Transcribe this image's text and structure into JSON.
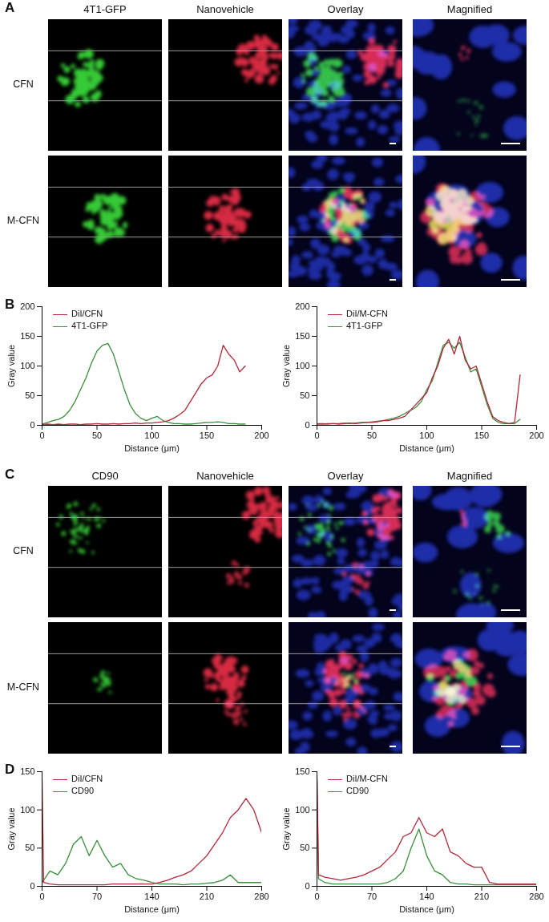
{
  "figure_panels": [
    {
      "letter": "A",
      "columns": [
        "4T1-GFP",
        "Nanovehicle",
        "Overlay",
        "Magnified"
      ],
      "rows": [
        "CFN",
        "M-CFN"
      ]
    },
    {
      "letter": "C",
      "columns": [
        "CD90",
        "Nanovehicle",
        "Overlay",
        "Magnified"
      ],
      "rows": [
        "CFN",
        "M-CFN"
      ]
    }
  ],
  "chart_panel_letters": [
    "B",
    "D"
  ],
  "chart_data": [
    {
      "type": "line",
      "x_label": "Distance (μm)",
      "y_label": "Gray value",
      "xlim": [
        0,
        200
      ],
      "xticks": [
        0,
        50,
        100,
        150,
        200
      ],
      "ylim": [
        0,
        200
      ],
      "yticks": [
        0,
        50,
        100,
        150,
        200
      ],
      "grid": false,
      "legend": "top-left",
      "x": [
        0,
        5,
        10,
        15,
        20,
        25,
        30,
        35,
        40,
        45,
        50,
        55,
        60,
        65,
        70,
        75,
        80,
        85,
        90,
        95,
        100,
        105,
        110,
        115,
        120,
        125,
        130,
        135,
        140,
        145,
        150,
        155,
        160,
        165,
        170,
        175,
        180,
        185
      ],
      "series": [
        {
          "name": "DiI/CFN",
          "color": "#b0283a",
          "values": [
            1,
            2,
            1,
            2,
            1,
            2,
            2,
            1,
            2,
            2,
            3,
            2,
            2,
            3,
            2,
            3,
            3,
            4,
            3,
            4,
            4,
            5,
            6,
            8,
            12,
            18,
            25,
            40,
            55,
            70,
            80,
            85,
            100,
            135,
            120,
            110,
            90,
            100
          ]
        },
        {
          "name": "4T1-GFP",
          "color": "#3a8f3a",
          "values": [
            2,
            5,
            8,
            10,
            15,
            25,
            40,
            60,
            80,
            105,
            125,
            135,
            138,
            120,
            90,
            60,
            35,
            20,
            12,
            8,
            12,
            15,
            8,
            5,
            3,
            3,
            2,
            2,
            3,
            4,
            5,
            5,
            6,
            5,
            3,
            3,
            2,
            2
          ]
        }
      ]
    },
    {
      "type": "line",
      "x_label": "Distance (μm)",
      "y_label": "Gray value",
      "xlim": [
        0,
        200
      ],
      "xticks": [
        0,
        50,
        100,
        150,
        200
      ],
      "ylim": [
        0,
        200
      ],
      "yticks": [
        0,
        50,
        100,
        150,
        200
      ],
      "grid": false,
      "legend": "top-left",
      "x": [
        0,
        5,
        10,
        15,
        20,
        25,
        30,
        35,
        40,
        45,
        50,
        55,
        60,
        65,
        70,
        75,
        80,
        85,
        90,
        95,
        100,
        105,
        110,
        115,
        120,
        125,
        130,
        135,
        140,
        145,
        150,
        155,
        160,
        165,
        170,
        175,
        180,
        185
      ],
      "series": [
        {
          "name": "DiI/M-CFN",
          "color": "#b0283a",
          "values": [
            2,
            2,
            3,
            3,
            2,
            3,
            4,
            3,
            4,
            5,
            5,
            6,
            8,
            8,
            10,
            12,
            15,
            25,
            35,
            45,
            55,
            80,
            100,
            130,
            145,
            120,
            150,
            110,
            95,
            100,
            70,
            40,
            15,
            8,
            5,
            3,
            5,
            85
          ]
        },
        {
          "name": "4T1-GFP",
          "color": "#3a8f3a",
          "values": [
            3,
            3,
            2,
            3,
            3,
            4,
            3,
            4,
            5,
            5,
            6,
            7,
            8,
            10,
            12,
            15,
            20,
            25,
            30,
            40,
            60,
            75,
            105,
            135,
            140,
            130,
            140,
            115,
            90,
            95,
            65,
            35,
            12,
            5,
            3,
            3,
            3,
            10
          ]
        }
      ]
    },
    {
      "type": "line",
      "x_label": "Distance (μm)",
      "y_label": "Gray value",
      "xlim": [
        0,
        280
      ],
      "xticks": [
        0,
        70,
        140,
        210,
        280
      ],
      "ylim": [
        0,
        150
      ],
      "yticks": [
        0,
        50,
        100,
        150
      ],
      "grid": false,
      "legend": "top-left",
      "x": [
        0,
        2,
        10,
        20,
        30,
        40,
        50,
        60,
        70,
        80,
        90,
        100,
        110,
        120,
        130,
        140,
        150,
        160,
        170,
        180,
        190,
        200,
        210,
        220,
        230,
        240,
        250,
        260,
        270,
        280
      ],
      "series": [
        {
          "name": "DiI/CFN",
          "color": "#b0283a",
          "values": [
            140,
            5,
            3,
            2,
            2,
            2,
            2,
            2,
            2,
            2,
            3,
            3,
            3,
            3,
            3,
            3,
            5,
            8,
            12,
            15,
            20,
            30,
            40,
            55,
            70,
            90,
            100,
            115,
            100,
            70
          ]
        },
        {
          "name": "CD90",
          "color": "#3a8f3a",
          "values": [
            5,
            8,
            20,
            15,
            30,
            55,
            65,
            40,
            60,
            40,
            25,
            30,
            15,
            10,
            8,
            5,
            3,
            3,
            3,
            2,
            3,
            3,
            4,
            5,
            8,
            15,
            5,
            5,
            5,
            5
          ]
        }
      ]
    },
    {
      "type": "line",
      "x_label": "Distance (μm)",
      "y_label": "Gray value",
      "xlim": [
        0,
        280
      ],
      "xticks": [
        0,
        70,
        140,
        210,
        280
      ],
      "ylim": [
        0,
        150
      ],
      "yticks": [
        0,
        50,
        100,
        150
      ],
      "grid": false,
      "legend": "top-left",
      "x": [
        0,
        2,
        10,
        20,
        30,
        40,
        50,
        60,
        70,
        80,
        90,
        100,
        110,
        120,
        130,
        140,
        150,
        160,
        170,
        180,
        190,
        200,
        210,
        220,
        230,
        240,
        250,
        260,
        270,
        280
      ],
      "series": [
        {
          "name": "DiI/M-CFN",
          "color": "#b0283a",
          "values": [
            145,
            15,
            12,
            10,
            8,
            10,
            12,
            15,
            20,
            25,
            35,
            45,
            65,
            70,
            90,
            70,
            65,
            75,
            45,
            40,
            30,
            25,
            25,
            5,
            3,
            3,
            3,
            3,
            3,
            3
          ]
        },
        {
          "name": "CD90",
          "color": "#3a8f3a",
          "values": [
            140,
            10,
            5,
            3,
            3,
            3,
            3,
            3,
            3,
            3,
            5,
            10,
            20,
            50,
            75,
            40,
            20,
            15,
            5,
            3,
            3,
            2,
            2,
            2,
            2,
            2,
            2,
            2,
            2,
            2
          ]
        }
      ]
    }
  ]
}
